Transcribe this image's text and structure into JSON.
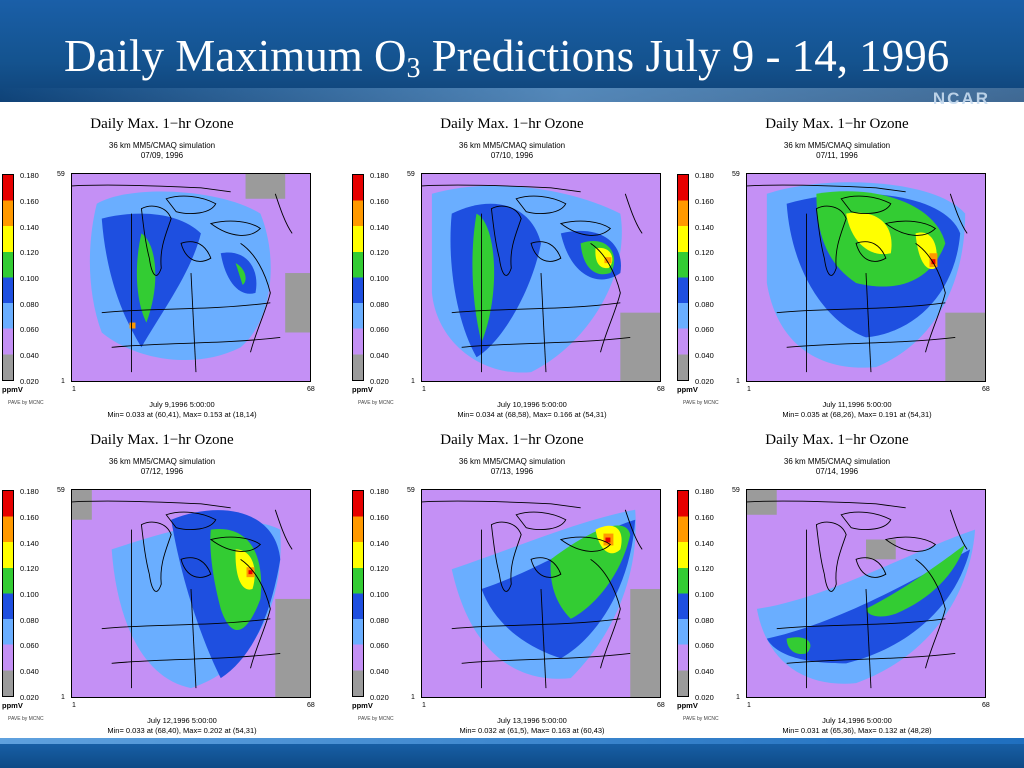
{
  "slide": {
    "title_main": "Daily Maximum O",
    "title_sub": "3",
    "title_rest": " Predictions July 9 - 14, 1996",
    "logo": "NCAR"
  },
  "colors": {
    "header": "#14538f",
    "scale": [
      "#e60000",
      "#ff9900",
      "#ffff00",
      "#33cc33",
      "#1e4fe0",
      "#6aaeff",
      "#c490f5",
      "#9b9b9b"
    ]
  },
  "common": {
    "panel_title": "Daily Max. 1−hr Ozone",
    "simulation": "36 km MM5/CMAQ simulation",
    "scale_ticks": [
      "0.180",
      "0.160",
      "0.140",
      "0.120",
      "0.100",
      "0.080",
      "0.060",
      "0.040",
      "0.020"
    ],
    "unit": "ppmV",
    "axis_y_max": "59",
    "axis_y_min": "1",
    "axis_x_min": "1",
    "axis_x_max": "68",
    "credit": "PAVE by MCNC"
  },
  "panels": [
    {
      "date": "07/09, 1996",
      "datetime": "July 9,1996 5:00:00",
      "minmax": "Min=  0.033 at (60,41), Max=  0.153 at (18,14)"
    },
    {
      "date": "07/10, 1996",
      "datetime": "July 10,1996 5:00:00",
      "minmax": "Min=  0.034 at (68,58), Max=  0.166 at (54,31)"
    },
    {
      "date": "07/11, 1996",
      "datetime": "July 11,1996 5:00:00",
      "minmax": "Min=  0.035 at (68,26), Max=  0.191 at (54,31)"
    },
    {
      "date": "07/12, 1996",
      "datetime": "July 12,1996 5:00:00",
      "minmax": "Min=  0.033 at (68,40), Max=  0.202 at (54,31)"
    },
    {
      "date": "07/13, 1996",
      "datetime": "July 13,1996 5:00:00",
      "minmax": "Min=  0.032 at (61,5), Max=  0.163 at (60,43)"
    },
    {
      "date": "07/14, 1996",
      "datetime": "July 14,1996 5:00:00",
      "minmax": "Min=  0.031 at (65,36), Max=  0.132 at (48,28)"
    }
  ]
}
